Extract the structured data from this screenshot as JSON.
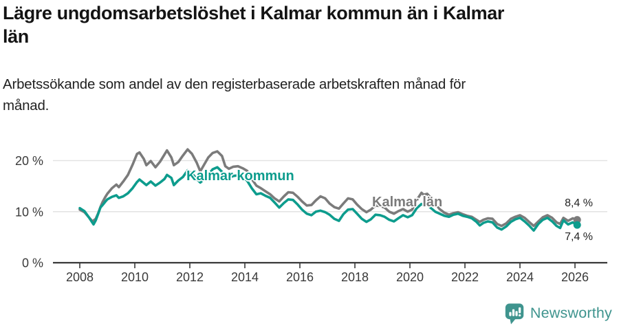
{
  "header": {
    "title": "Lägre ungdomsarbetslöshet i Kalmar kommun än i Kalmar län",
    "title_lines": [
      "Lägre ungdomsarbetslöshet i Kalmar kommun än i Kalmar",
      "län"
    ],
    "subtitle": "Arbetssökande som andel av den registerbaserade arbetskraften månad för månad.",
    "subtitle_lines": [
      "Arbetssökande som andel av den registerbaserade arbetskraften månad för",
      "månad."
    ]
  },
  "footer": {
    "brand": "Newsworthy"
  },
  "colors": {
    "kommun_line": "#0d9c8d",
    "lan_line": "#7b7b7b",
    "grid": "#e2e2e2",
    "axis": "#383838",
    "tick_text": "#3a3a3a",
    "value_text": "#222222",
    "logo_teal": "#3f948e",
    "title_text": "#141414"
  },
  "chart_data": {
    "type": "line",
    "title": "Lägre ungdomsarbetslöshet i Kalmar kommun än i Kalmar län",
    "xlabel": "",
    "ylabel": "",
    "grid": "horizontal-only",
    "legend_position": "inline-labels",
    "x_range": [
      2007.9,
      2026.3
    ],
    "ylim": [
      0,
      23
    ],
    "x_axis": {
      "tick_years": [
        2008,
        2010,
        2012,
        2014,
        2016,
        2018,
        2020,
        2022,
        2024,
        2026
      ],
      "tick_labels": [
        "2008",
        "2010",
        "2012",
        "2014",
        "2016",
        "2018",
        "2020",
        "2022",
        "2024",
        "2026"
      ]
    },
    "y_axis": {
      "tick_values": [
        0,
        10,
        20
      ],
      "tick_labels": [
        "0 %",
        "10 %",
        "20 %"
      ]
    },
    "series": [
      {
        "name": "Kalmar län",
        "color": "#7b7b7b",
        "end_value": 8.4,
        "end_value_label": "8,4 %",
        "points": [
          [
            2008.0,
            10.4
          ],
          [
            2008.17,
            9.9
          ],
          [
            2008.33,
            8.9
          ],
          [
            2008.46,
            8.1
          ],
          [
            2008.58,
            8.6
          ],
          [
            2008.67,
            9.7
          ],
          [
            2008.75,
            10.9
          ],
          [
            2008.83,
            11.9
          ],
          [
            2008.92,
            12.8
          ],
          [
            2009.0,
            13.5
          ],
          [
            2009.17,
            14.6
          ],
          [
            2009.33,
            15.3
          ],
          [
            2009.42,
            14.8
          ],
          [
            2009.58,
            15.9
          ],
          [
            2009.75,
            17.2
          ],
          [
            2009.92,
            19.2
          ],
          [
            2010.08,
            21.3
          ],
          [
            2010.17,
            21.6
          ],
          [
            2010.33,
            20.3
          ],
          [
            2010.42,
            19.1
          ],
          [
            2010.58,
            19.9
          ],
          [
            2010.75,
            18.7
          ],
          [
            2010.92,
            19.8
          ],
          [
            2011.08,
            21.2
          ],
          [
            2011.17,
            22.0
          ],
          [
            2011.33,
            20.6
          ],
          [
            2011.42,
            19.1
          ],
          [
            2011.58,
            19.7
          ],
          [
            2011.75,
            21.0
          ],
          [
            2011.92,
            22.2
          ],
          [
            2012.08,
            21.3
          ],
          [
            2012.25,
            19.6
          ],
          [
            2012.38,
            17.9
          ],
          [
            2012.54,
            19.4
          ],
          [
            2012.67,
            20.6
          ],
          [
            2012.83,
            21.5
          ],
          [
            2013.0,
            21.8
          ],
          [
            2013.17,
            20.9
          ],
          [
            2013.29,
            18.9
          ],
          [
            2013.42,
            18.4
          ],
          [
            2013.58,
            18.8
          ],
          [
            2013.75,
            18.9
          ],
          [
            2013.92,
            18.5
          ],
          [
            2014.08,
            18.0
          ],
          [
            2014.25,
            16.4
          ],
          [
            2014.42,
            15.1
          ],
          [
            2014.58,
            14.6
          ],
          [
            2014.75,
            14.0
          ],
          [
            2014.92,
            13.4
          ],
          [
            2015.08,
            12.6
          ],
          [
            2015.25,
            12.0
          ],
          [
            2015.42,
            13.0
          ],
          [
            2015.58,
            13.8
          ],
          [
            2015.75,
            13.7
          ],
          [
            2015.92,
            12.9
          ],
          [
            2016.08,
            12.0
          ],
          [
            2016.25,
            11.2
          ],
          [
            2016.42,
            11.3
          ],
          [
            2016.58,
            12.2
          ],
          [
            2016.75,
            13.0
          ],
          [
            2016.92,
            12.6
          ],
          [
            2017.08,
            11.6
          ],
          [
            2017.25,
            10.9
          ],
          [
            2017.42,
            10.6
          ],
          [
            2017.58,
            11.6
          ],
          [
            2017.75,
            12.6
          ],
          [
            2017.92,
            12.4
          ],
          [
            2018.08,
            11.4
          ],
          [
            2018.25,
            10.5
          ],
          [
            2018.42,
            9.9
          ],
          [
            2018.58,
            10.4
          ],
          [
            2018.75,
            11.2
          ],
          [
            2018.92,
            11.1
          ],
          [
            2019.08,
            10.8
          ],
          [
            2019.25,
            10.0
          ],
          [
            2019.42,
            9.6
          ],
          [
            2019.58,
            10.1
          ],
          [
            2019.75,
            10.5
          ],
          [
            2019.92,
            10.0
          ],
          [
            2020.08,
            10.4
          ],
          [
            2020.25,
            12.3
          ],
          [
            2020.42,
            13.7
          ],
          [
            2020.5,
            13.3
          ],
          [
            2020.63,
            13.5
          ],
          [
            2020.79,
            12.5
          ],
          [
            2020.92,
            11.6
          ],
          [
            2021.08,
            10.5
          ],
          [
            2021.25,
            9.8
          ],
          [
            2021.42,
            9.4
          ],
          [
            2021.58,
            9.7
          ],
          [
            2021.75,
            9.9
          ],
          [
            2021.92,
            9.5
          ],
          [
            2022.08,
            9.2
          ],
          [
            2022.25,
            9.0
          ],
          [
            2022.42,
            8.4
          ],
          [
            2022.54,
            8.0
          ],
          [
            2022.67,
            8.4
          ],
          [
            2022.83,
            8.7
          ],
          [
            2023.0,
            8.6
          ],
          [
            2023.17,
            7.6
          ],
          [
            2023.33,
            7.2
          ],
          [
            2023.5,
            7.7
          ],
          [
            2023.67,
            8.6
          ],
          [
            2023.83,
            9.0
          ],
          [
            2024.0,
            9.3
          ],
          [
            2024.17,
            8.8
          ],
          [
            2024.33,
            8.0
          ],
          [
            2024.5,
            7.2
          ],
          [
            2024.67,
            8.1
          ],
          [
            2024.83,
            8.9
          ],
          [
            2025.0,
            9.3
          ],
          [
            2025.17,
            8.8
          ],
          [
            2025.33,
            7.9
          ],
          [
            2025.46,
            7.6
          ],
          [
            2025.58,
            8.8
          ],
          [
            2025.75,
            8.2
          ],
          [
            2025.92,
            8.7
          ],
          [
            2026.08,
            8.4
          ]
        ]
      },
      {
        "name": "Kalmar kommun",
        "color": "#0d9c8d",
        "end_value": 7.4,
        "end_value_label": "7,4 %",
        "points": [
          [
            2008.0,
            10.7
          ],
          [
            2008.17,
            10.1
          ],
          [
            2008.33,
            8.9
          ],
          [
            2008.5,
            7.5
          ],
          [
            2008.58,
            8.3
          ],
          [
            2008.67,
            9.6
          ],
          [
            2008.75,
            10.8
          ],
          [
            2008.83,
            11.3
          ],
          [
            2008.92,
            11.9
          ],
          [
            2009.0,
            12.4
          ],
          [
            2009.17,
            12.9
          ],
          [
            2009.33,
            13.2
          ],
          [
            2009.42,
            12.7
          ],
          [
            2009.58,
            13.0
          ],
          [
            2009.75,
            13.6
          ],
          [
            2009.92,
            14.6
          ],
          [
            2010.08,
            15.8
          ],
          [
            2010.17,
            16.3
          ],
          [
            2010.33,
            15.6
          ],
          [
            2010.42,
            15.2
          ],
          [
            2010.58,
            15.9
          ],
          [
            2010.75,
            15.1
          ],
          [
            2010.92,
            15.7
          ],
          [
            2011.08,
            16.4
          ],
          [
            2011.17,
            17.2
          ],
          [
            2011.33,
            16.6
          ],
          [
            2011.42,
            15.2
          ],
          [
            2011.58,
            16.1
          ],
          [
            2011.75,
            16.8
          ],
          [
            2011.92,
            18.1
          ],
          [
            2012.08,
            17.5
          ],
          [
            2012.25,
            16.4
          ],
          [
            2012.38,
            15.7
          ],
          [
            2012.54,
            16.5
          ],
          [
            2012.67,
            17.2
          ],
          [
            2012.83,
            18.3
          ],
          [
            2013.0,
            18.7
          ],
          [
            2013.17,
            17.8
          ],
          [
            2013.29,
            16.4
          ],
          [
            2013.42,
            16.6
          ],
          [
            2013.58,
            17.0
          ],
          [
            2013.75,
            17.1
          ],
          [
            2013.92,
            16.7
          ],
          [
            2014.08,
            16.1
          ],
          [
            2014.25,
            14.6
          ],
          [
            2014.42,
            13.4
          ],
          [
            2014.58,
            13.6
          ],
          [
            2014.75,
            13.1
          ],
          [
            2014.92,
            12.7
          ],
          [
            2015.08,
            11.8
          ],
          [
            2015.25,
            10.8
          ],
          [
            2015.42,
            11.7
          ],
          [
            2015.58,
            12.4
          ],
          [
            2015.75,
            12.3
          ],
          [
            2015.92,
            11.4
          ],
          [
            2016.08,
            10.4
          ],
          [
            2016.25,
            9.6
          ],
          [
            2016.42,
            9.3
          ],
          [
            2016.58,
            10.0
          ],
          [
            2016.75,
            10.2
          ],
          [
            2016.92,
            9.9
          ],
          [
            2017.08,
            9.4
          ],
          [
            2017.25,
            8.6
          ],
          [
            2017.42,
            8.2
          ],
          [
            2017.58,
            9.5
          ],
          [
            2017.75,
            10.4
          ],
          [
            2017.92,
            10.5
          ],
          [
            2018.08,
            9.6
          ],
          [
            2018.25,
            8.6
          ],
          [
            2018.42,
            8.0
          ],
          [
            2018.58,
            8.5
          ],
          [
            2018.75,
            9.4
          ],
          [
            2018.92,
            9.3
          ],
          [
            2019.08,
            9.0
          ],
          [
            2019.25,
            8.4
          ],
          [
            2019.42,
            8.1
          ],
          [
            2019.58,
            8.7
          ],
          [
            2019.75,
            9.3
          ],
          [
            2019.92,
            8.9
          ],
          [
            2020.08,
            9.3
          ],
          [
            2020.25,
            10.7
          ],
          [
            2020.42,
            11.5
          ],
          [
            2020.5,
            11.2
          ],
          [
            2020.63,
            11.3
          ],
          [
            2020.79,
            10.6
          ],
          [
            2020.92,
            10.0
          ],
          [
            2021.08,
            9.6
          ],
          [
            2021.25,
            9.2
          ],
          [
            2021.42,
            9.0
          ],
          [
            2021.58,
            9.4
          ],
          [
            2021.75,
            9.6
          ],
          [
            2021.92,
            9.2
          ],
          [
            2022.08,
            9.0
          ],
          [
            2022.25,
            8.7
          ],
          [
            2022.42,
            8.0
          ],
          [
            2022.54,
            7.3
          ],
          [
            2022.67,
            7.8
          ],
          [
            2022.83,
            8.1
          ],
          [
            2023.0,
            7.9
          ],
          [
            2023.17,
            6.9
          ],
          [
            2023.33,
            6.5
          ],
          [
            2023.5,
            7.1
          ],
          [
            2023.67,
            8.0
          ],
          [
            2023.83,
            8.5
          ],
          [
            2024.0,
            8.8
          ],
          [
            2024.17,
            8.1
          ],
          [
            2024.33,
            7.3
          ],
          [
            2024.5,
            6.3
          ],
          [
            2024.67,
            7.6
          ],
          [
            2024.83,
            8.4
          ],
          [
            2025.0,
            8.8
          ],
          [
            2025.17,
            8.1
          ],
          [
            2025.33,
            7.2
          ],
          [
            2025.46,
            6.8
          ],
          [
            2025.58,
            8.3
          ],
          [
            2025.75,
            7.5
          ],
          [
            2025.92,
            7.9
          ],
          [
            2026.08,
            7.4
          ]
        ]
      }
    ]
  }
}
